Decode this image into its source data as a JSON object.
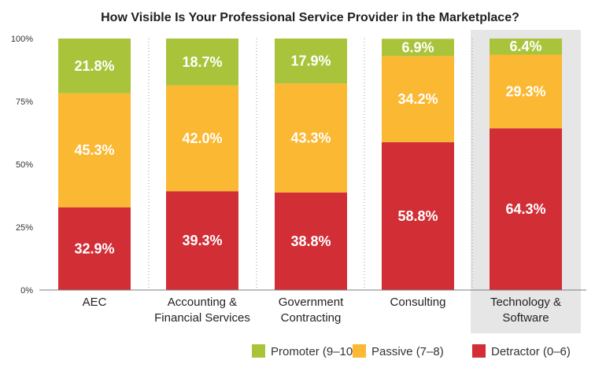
{
  "chart_data": {
    "type": "bar",
    "stacked": true,
    "title": "How Visible Is Your Professional Service Provider in the Marketplace?",
    "xlabel": "",
    "ylabel": "",
    "ylim": [
      0,
      100
    ],
    "yticks": [
      "0%",
      "25%",
      "50%",
      "75%",
      "100%"
    ],
    "grid": false,
    "legend_position": "bottom-right",
    "categories": [
      [
        "AEC"
      ],
      [
        "Accounting &",
        "Financial Services"
      ],
      [
        "Government",
        "Contracting"
      ],
      [
        "Consulting"
      ],
      [
        "Technology &",
        "Software"
      ]
    ],
    "highlighted_category": 4,
    "highlight_color": "#e6e6e6",
    "series": [
      {
        "name": "Detractor (0–6)",
        "color": "#d12e36",
        "values": [
          32.9,
          39.3,
          38.8,
          58.8,
          64.3
        ],
        "labels": [
          "32.9%",
          "39.3%",
          "38.8%",
          "58.8%",
          "64.3%"
        ]
      },
      {
        "name": "Passive (7–8)",
        "color": "#fbb832",
        "values": [
          45.3,
          42.0,
          43.3,
          34.2,
          29.3
        ],
        "labels": [
          "45.3%",
          "42.0%",
          "43.3%",
          "34.2%",
          "29.3%"
        ]
      },
      {
        "name": "Promoter (9–10)",
        "color": "#a9c43b",
        "values": [
          21.8,
          18.7,
          17.9,
          6.9,
          6.4
        ],
        "labels": [
          "21.8%",
          "18.7%",
          "17.9%",
          "6.9%",
          "6.4%"
        ]
      }
    ],
    "legend_order": [
      2,
      1,
      0
    ]
  }
}
